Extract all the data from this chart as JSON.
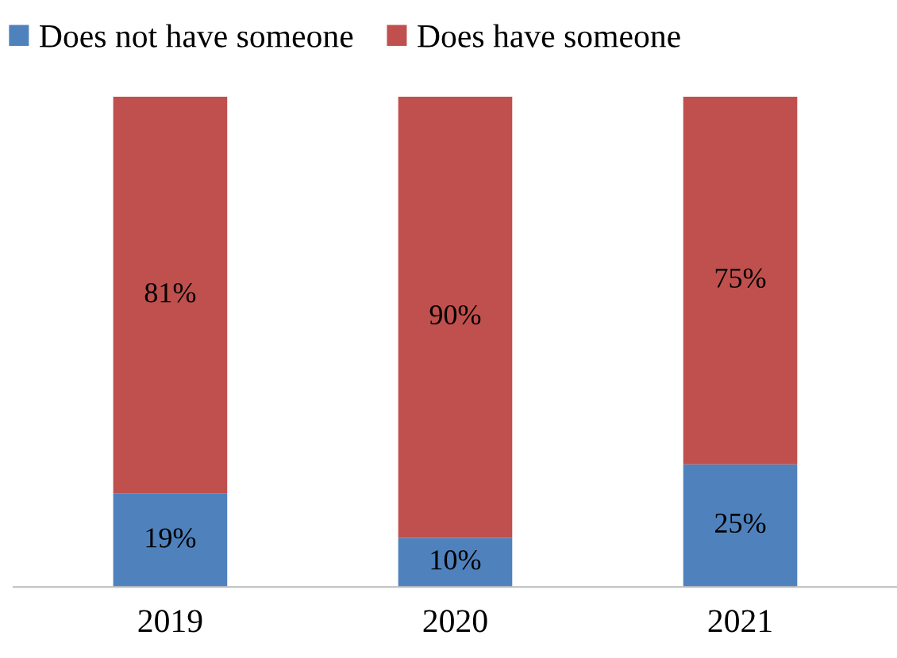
{
  "chart_data": {
    "type": "bar",
    "stacked": true,
    "categories": [
      "2019",
      "2020",
      "2021"
    ],
    "series": [
      {
        "name": "Does not have someone",
        "color": "#4f81bd",
        "values": [
          19,
          10,
          25
        ],
        "value_labels": [
          "19%",
          "10%",
          "25%"
        ]
      },
      {
        "name": "Does have someone",
        "color": "#c0504d",
        "values": [
          81,
          90,
          75
        ],
        "value_labels": [
          "81%",
          "90%",
          "75%"
        ]
      }
    ],
    "tick_labels": "x",
    "legend": "top left",
    "grid": false
  }
}
